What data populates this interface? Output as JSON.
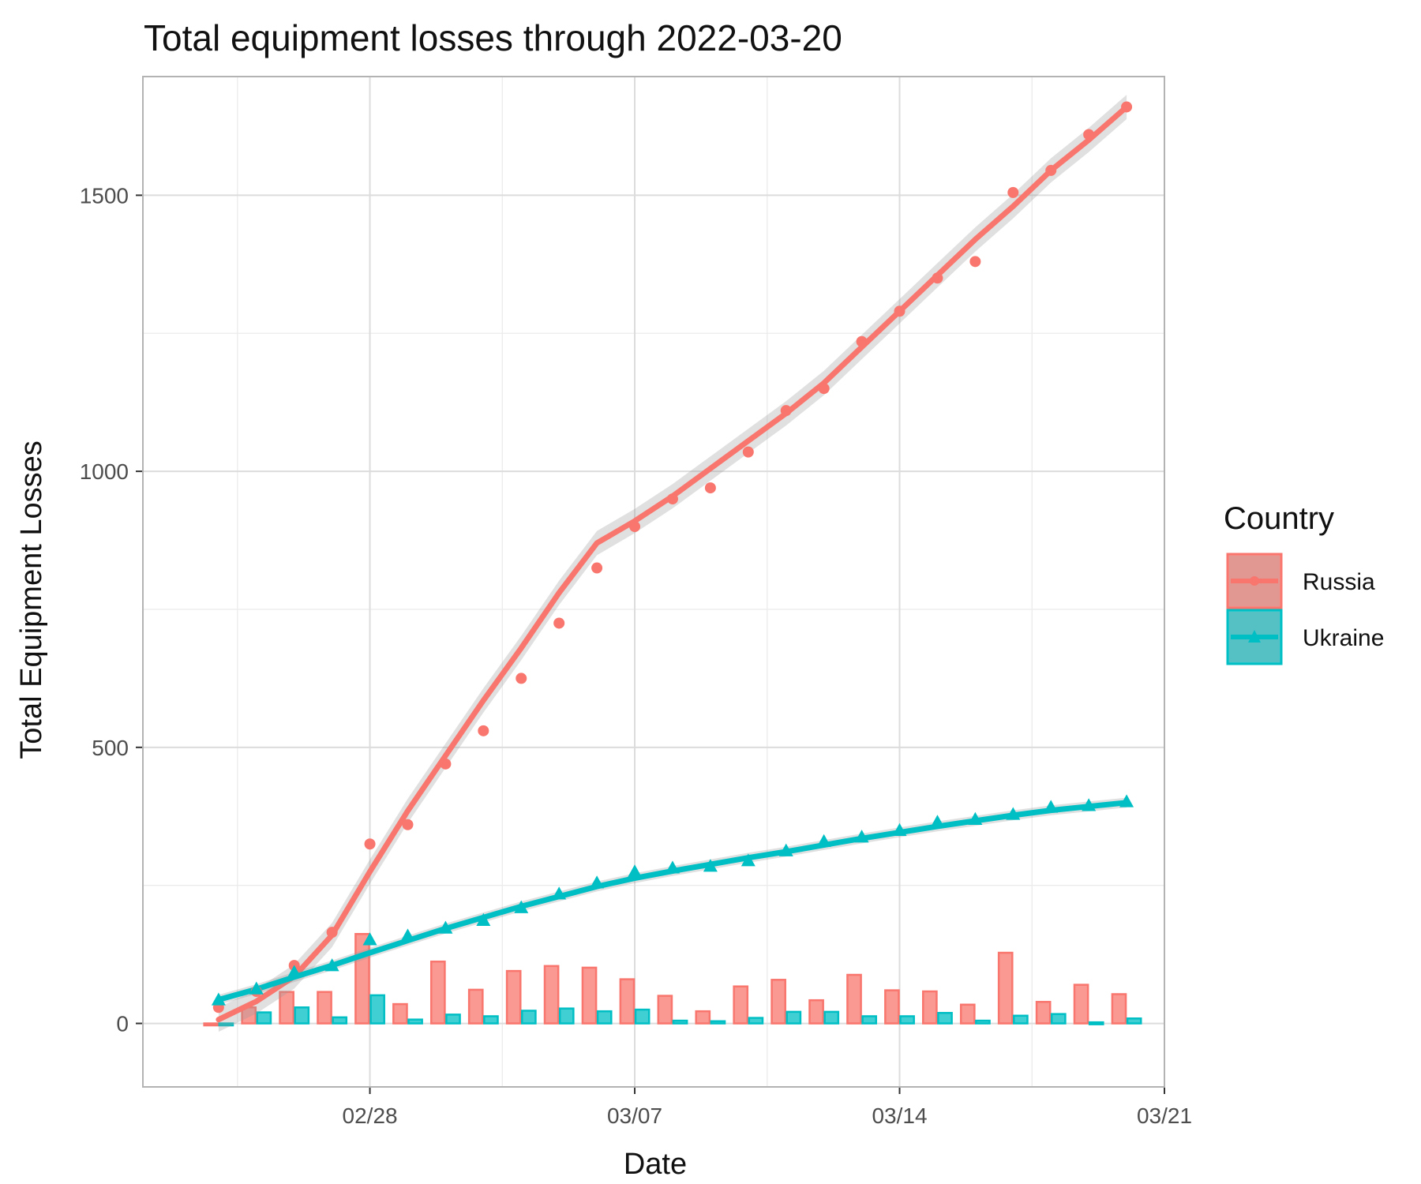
{
  "chart_data": {
    "type": "line",
    "title": "Total equipment losses through 2022-03-20",
    "xlabel": "Date",
    "ylabel": "Total Equipment Losses",
    "x_ticks": [
      "02/28",
      "03/07",
      "03/14",
      "03/21"
    ],
    "y_ticks": [
      0,
      500,
      1000,
      1500
    ],
    "ylim": [
      -115,
      1715
    ],
    "xlim": [
      "2022-02-22",
      "2022-03-21"
    ],
    "grid": true,
    "legend": {
      "title": "Country",
      "position": "right"
    },
    "dates": [
      "2022-02-24",
      "2022-02-25",
      "2022-02-26",
      "2022-02-27",
      "2022-02-28",
      "2022-03-01",
      "2022-03-02",
      "2022-03-03",
      "2022-03-04",
      "2022-03-05",
      "2022-03-06",
      "2022-03-07",
      "2022-03-08",
      "2022-03-09",
      "2022-03-10",
      "2022-03-11",
      "2022-03-12",
      "2022-03-13",
      "2022-03-14",
      "2022-03-15",
      "2022-03-16",
      "2022-03-17",
      "2022-03-18",
      "2022-03-19",
      "2022-03-20"
    ],
    "series": [
      {
        "name": "Russia",
        "color": "#F8766D",
        "marker": "circle",
        "cumulative": [
          29,
          58,
          105,
          165,
          325,
          360,
          470,
          530,
          625,
          725,
          825,
          900,
          950,
          970,
          1035,
          1110,
          1150,
          1235,
          1290,
          1350,
          1380,
          1505,
          1545,
          1610,
          1660
        ],
        "daily": [
          0,
          29,
          57,
          57,
          162,
          35,
          112,
          61,
          95,
          104,
          101,
          80,
          50,
          22,
          67,
          79,
          42,
          88,
          60,
          58,
          34,
          128,
          39,
          70,
          53
        ],
        "smooth": [
          [
            0,
            7
          ],
          [
            1,
            40
          ],
          [
            2,
            85
          ],
          [
            3,
            160
          ],
          [
            4,
            275
          ],
          [
            5,
            385
          ],
          [
            6,
            485
          ],
          [
            7,
            585
          ],
          [
            8,
            680
          ],
          [
            9,
            780
          ],
          [
            10,
            870
          ],
          [
            11,
            910
          ],
          [
            12,
            955
          ],
          [
            13,
            1005
          ],
          [
            14,
            1055
          ],
          [
            15,
            1105
          ],
          [
            16,
            1160
          ],
          [
            17,
            1225
          ],
          [
            18,
            1290
          ],
          [
            19,
            1355
          ],
          [
            20,
            1420
          ],
          [
            21,
            1480
          ],
          [
            22,
            1545
          ],
          [
            23,
            1600
          ],
          [
            24,
            1660
          ]
        ]
      },
      {
        "name": "Ukraine",
        "color": "#00BFC4",
        "marker": "triangle",
        "cumulative": [
          43,
          63,
          93,
          105,
          152,
          159,
          173,
          187,
          210,
          235,
          255,
          275,
          282,
          285,
          295,
          313,
          330,
          338,
          350,
          365,
          370,
          379,
          392,
          395,
          402
        ],
        "daily": [
          0,
          20,
          29,
          11,
          51,
          7,
          16,
          13,
          23,
          27,
          22,
          25,
          5,
          4,
          10,
          21,
          21,
          13,
          13,
          19,
          5,
          14,
          17,
          2,
          9
        ],
        "smooth": [
          [
            0,
            43
          ],
          [
            1,
            62
          ],
          [
            2,
            84
          ],
          [
            3,
            105
          ],
          [
            4,
            128
          ],
          [
            5,
            150
          ],
          [
            6,
            172
          ],
          [
            7,
            192
          ],
          [
            8,
            212
          ],
          [
            9,
            230
          ],
          [
            10,
            248
          ],
          [
            11,
            263
          ],
          [
            12,
            276
          ],
          [
            13,
            288
          ],
          [
            14,
            300
          ],
          [
            15,
            311
          ],
          [
            16,
            323
          ],
          [
            17,
            335
          ],
          [
            18,
            346
          ],
          [
            19,
            357
          ],
          [
            20,
            367
          ],
          [
            21,
            377
          ],
          [
            22,
            386
          ],
          [
            23,
            393
          ],
          [
            24,
            400
          ]
        ]
      }
    ]
  }
}
